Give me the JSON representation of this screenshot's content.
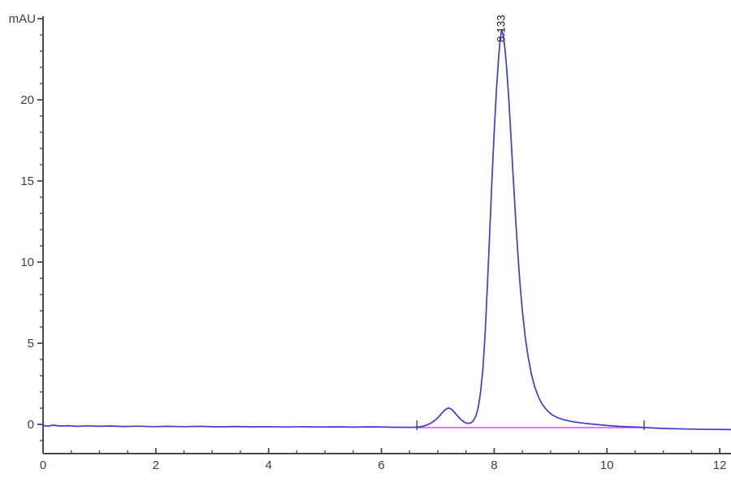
{
  "chart_data": {
    "type": "line",
    "title": "",
    "xlabel": "",
    "ylabel": "mAU",
    "xlim": [
      0,
      12.2
    ],
    "ylim": [
      -1.8,
      25.15
    ],
    "grid": false,
    "legend": null,
    "x_major_ticks": [
      {
        "value": 0,
        "label": "0"
      },
      {
        "value": 2,
        "label": "2"
      },
      {
        "value": 4,
        "label": "4"
      },
      {
        "value": 6,
        "label": "6"
      },
      {
        "value": 8,
        "label": "8"
      },
      {
        "value": 10,
        "label": "10"
      },
      {
        "value": 12,
        "label": "12"
      }
    ],
    "x_minor_step": 0.5,
    "y_major_ticks": [
      {
        "value": 0,
        "label": "0"
      },
      {
        "value": 5,
        "label": "5"
      },
      {
        "value": 10,
        "label": "10"
      },
      {
        "value": 15,
        "label": "15"
      },
      {
        "value": 20,
        "label": "20"
      },
      {
        "value": 25,
        "label": ""
      }
    ],
    "y_minor_step": 1,
    "peak_label": {
      "text": "8.133",
      "x": 8.133,
      "y": 24.3
    },
    "integration_marks": [
      6.63,
      10.66
    ],
    "series": [
      {
        "name": "integration-baseline",
        "color": "#f05ef0",
        "width": 1.8,
        "points": [
          [
            6.63,
            -0.2
          ],
          [
            10.66,
            -0.2
          ]
        ]
      },
      {
        "name": "uv-signal",
        "color": "#3c3cd6",
        "width": 1.7,
        "points": [
          [
            0.0,
            -0.07
          ],
          [
            0.08,
            -0.11
          ],
          [
            0.18,
            -0.05
          ],
          [
            0.3,
            -0.1
          ],
          [
            0.45,
            -0.08
          ],
          [
            0.6,
            -0.12
          ],
          [
            0.8,
            -0.09
          ],
          [
            1.0,
            -0.12
          ],
          [
            1.2,
            -0.1
          ],
          [
            1.45,
            -0.13
          ],
          [
            1.7,
            -0.11
          ],
          [
            1.95,
            -0.14
          ],
          [
            2.2,
            -0.12
          ],
          [
            2.5,
            -0.14
          ],
          [
            2.8,
            -0.12
          ],
          [
            3.1,
            -0.15
          ],
          [
            3.4,
            -0.13
          ],
          [
            3.7,
            -0.15
          ],
          [
            4.0,
            -0.14
          ],
          [
            4.3,
            -0.16
          ],
          [
            4.6,
            -0.14
          ],
          [
            4.9,
            -0.16
          ],
          [
            5.2,
            -0.15
          ],
          [
            5.5,
            -0.17
          ],
          [
            5.8,
            -0.15
          ],
          [
            6.1,
            -0.17
          ],
          [
            6.35,
            -0.18
          ],
          [
            6.55,
            -0.18
          ],
          [
            6.63,
            -0.17
          ],
          [
            6.72,
            -0.13
          ],
          [
            6.8,
            -0.05
          ],
          [
            6.88,
            0.08
          ],
          [
            6.95,
            0.25
          ],
          [
            7.02,
            0.48
          ],
          [
            7.08,
            0.72
          ],
          [
            7.13,
            0.9
          ],
          [
            7.19,
            1.02
          ],
          [
            7.25,
            0.92
          ],
          [
            7.3,
            0.72
          ],
          [
            7.36,
            0.48
          ],
          [
            7.42,
            0.27
          ],
          [
            7.48,
            0.12
          ],
          [
            7.53,
            0.06
          ],
          [
            7.58,
            0.08
          ],
          [
            7.63,
            0.22
          ],
          [
            7.68,
            0.55
          ],
          [
            7.72,
            1.1
          ],
          [
            7.76,
            2.0
          ],
          [
            7.8,
            3.4
          ],
          [
            7.84,
            5.6
          ],
          [
            7.88,
            8.6
          ],
          [
            7.92,
            11.8
          ],
          [
            7.96,
            15.0
          ],
          [
            8.0,
            18.0
          ],
          [
            8.04,
            20.6
          ],
          [
            8.08,
            22.7
          ],
          [
            8.11,
            23.8
          ],
          [
            8.133,
            24.3
          ],
          [
            8.16,
            24.0
          ],
          [
            8.19,
            23.2
          ],
          [
            8.22,
            22.0
          ],
          [
            8.26,
            20.0
          ],
          [
            8.3,
            17.6
          ],
          [
            8.34,
            15.1
          ],
          [
            8.38,
            12.7
          ],
          [
            8.42,
            10.5
          ],
          [
            8.46,
            8.6
          ],
          [
            8.5,
            7.0
          ],
          [
            8.55,
            5.4
          ],
          [
            8.6,
            4.2
          ],
          [
            8.66,
            3.1
          ],
          [
            8.72,
            2.3
          ],
          [
            8.79,
            1.65
          ],
          [
            8.86,
            1.2
          ],
          [
            8.94,
            0.85
          ],
          [
            9.03,
            0.58
          ],
          [
            9.13,
            0.4
          ],
          [
            9.25,
            0.27
          ],
          [
            9.4,
            0.16
          ],
          [
            9.55,
            0.09
          ],
          [
            9.7,
            0.03
          ],
          [
            9.85,
            -0.02
          ],
          [
            10.0,
            -0.07
          ],
          [
            10.2,
            -0.12
          ],
          [
            10.4,
            -0.15
          ],
          [
            10.55,
            -0.17
          ],
          [
            10.66,
            -0.19
          ],
          [
            10.8,
            -0.22
          ],
          [
            11.0,
            -0.25
          ],
          [
            11.2,
            -0.27
          ],
          [
            11.5,
            -0.29
          ],
          [
            11.8,
            -0.31
          ],
          [
            12.0,
            -0.31
          ],
          [
            12.2,
            -0.32
          ]
        ]
      }
    ]
  },
  "colors": {
    "background": "#ffffff",
    "axis": "#4b4b4b",
    "tick_label": "#3c3c4e",
    "peak_label": "#1f1f1f",
    "signal": "#3c3cd6",
    "baseline": "#f05ef0"
  }
}
